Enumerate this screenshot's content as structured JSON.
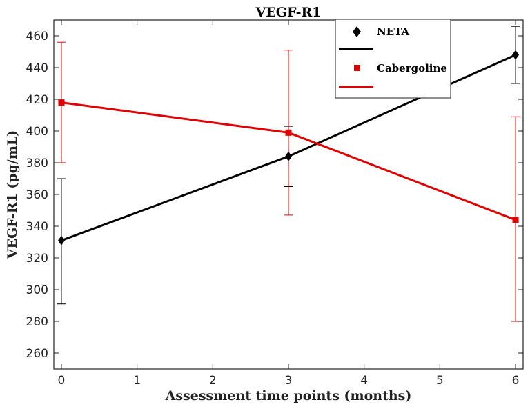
{
  "chart_data": {
    "type": "line",
    "title": "VEGF-R1",
    "xlabel": "Assessment time points (months)",
    "ylabel": "VEGF-R1 (pg/mL)",
    "xlim": [
      -0.1,
      6.1
    ],
    "ylim": [
      250,
      470
    ],
    "xticks": [
      0,
      1,
      2,
      3,
      4,
      5,
      6
    ],
    "yticks": [
      260,
      280,
      300,
      320,
      340,
      360,
      380,
      400,
      420,
      440,
      460
    ],
    "grid": false,
    "legend_position": "top-right",
    "series": [
      {
        "name": "NETA",
        "color": "#000000",
        "marker": "diamond",
        "x": [
          0,
          3,
          6
        ],
        "y": [
          331,
          384,
          448
        ],
        "err_low": [
          291,
          365,
          430
        ],
        "err_high": [
          370,
          403,
          466
        ]
      },
      {
        "name": "Cabergoline",
        "color": "#e00000",
        "marker": "square",
        "x": [
          0,
          3,
          6
        ],
        "y": [
          418,
          399,
          344
        ],
        "err_low": [
          380,
          347,
          280
        ],
        "err_high": [
          456,
          451,
          409
        ]
      }
    ]
  }
}
